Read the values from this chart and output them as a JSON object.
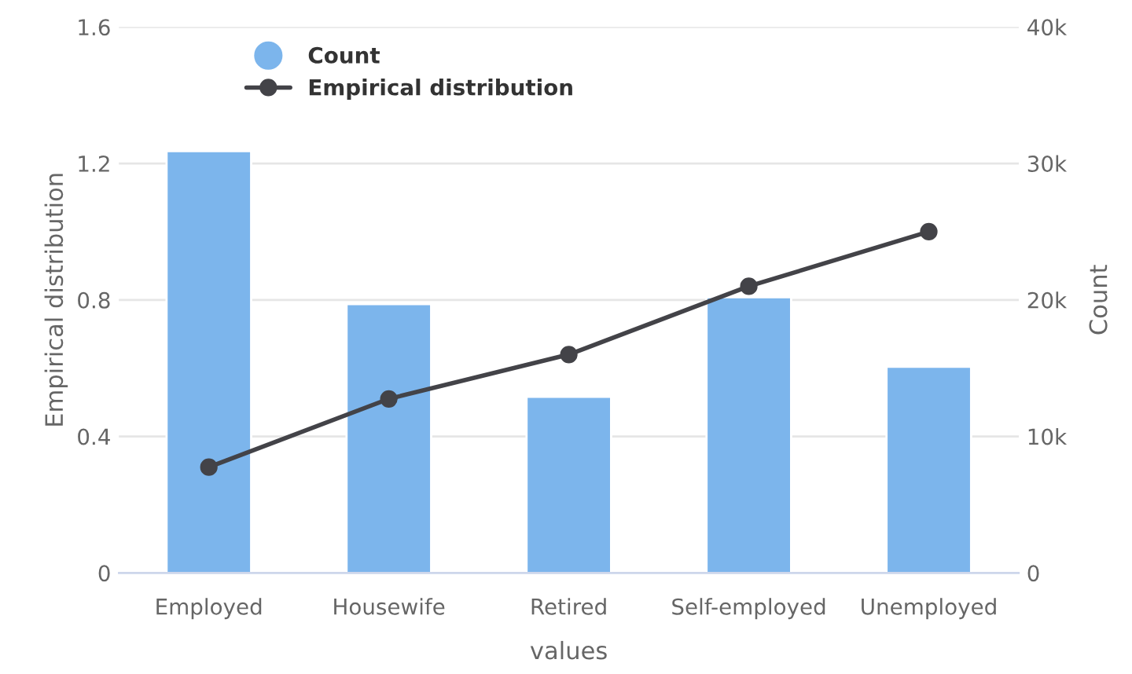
{
  "chart_data": {
    "type": "bar",
    "xlabel": "values",
    "ylabel": "Empirical distribution",
    "y2label": "Count",
    "categories": [
      "Employed",
      "Housewife",
      "Retired",
      "Self-employed",
      "Unemployed"
    ],
    "series": [
      {
        "name": "Count",
        "axis": "y2",
        "color": "#7cb5ec",
        "values": [
          30900,
          19700,
          12900,
          20200,
          15100
        ]
      },
      {
        "name": "Empirical distribution",
        "type": "line",
        "color": "#434348",
        "marker": "circle",
        "values": [
          0.31,
          0.51,
          0.64,
          0.84,
          1.0
        ]
      }
    ],
    "ylim": [
      0,
      1.6
    ],
    "yticks": [
      0,
      0.4,
      0.8,
      1.2,
      1.6
    ],
    "y2lim": [
      0,
      40000
    ],
    "y2ticks": [
      {
        "value": 0,
        "label": "0"
      },
      {
        "value": 10000,
        "label": "10k"
      },
      {
        "value": 20000,
        "label": "20k"
      },
      {
        "value": 30000,
        "label": "30k"
      },
      {
        "value": 40000,
        "label": "40k"
      }
    ],
    "grid": "y",
    "legend": "top left"
  }
}
